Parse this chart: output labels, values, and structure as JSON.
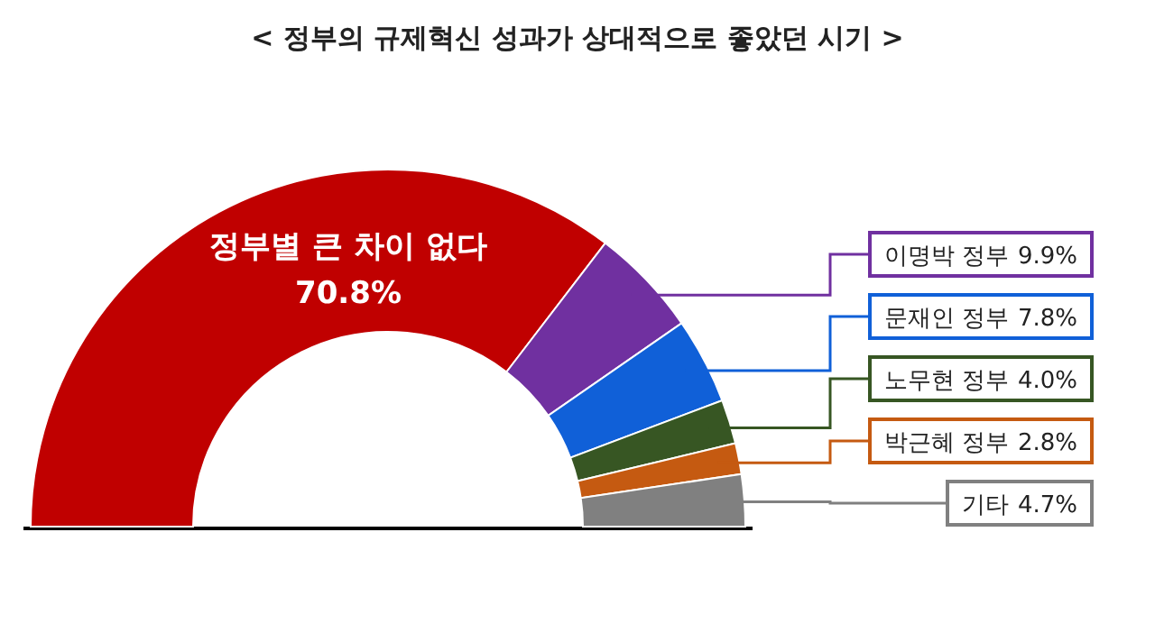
{
  "chart_data": {
    "type": "donut",
    "title": "< 정부의 규제혁신 성과가 상대적으로 좋았던 시기 >",
    "categories": [
      "정부별 큰 차이 없다",
      "이명박 정부",
      "문재인 정부",
      "노무현 정부",
      "박근혜 정부",
      "기타"
    ],
    "values": [
      70.8,
      9.9,
      7.8,
      4.0,
      2.8,
      4.7
    ],
    "colors": [
      "#c00000",
      "#7030a0",
      "#1060d8",
      "#375623",
      "#c55a11",
      "#808080"
    ],
    "value_labels": [
      "70.8%",
      "9.9%",
      "7.8%",
      "4.0%",
      "2.8%",
      "4.7%"
    ]
  }
}
